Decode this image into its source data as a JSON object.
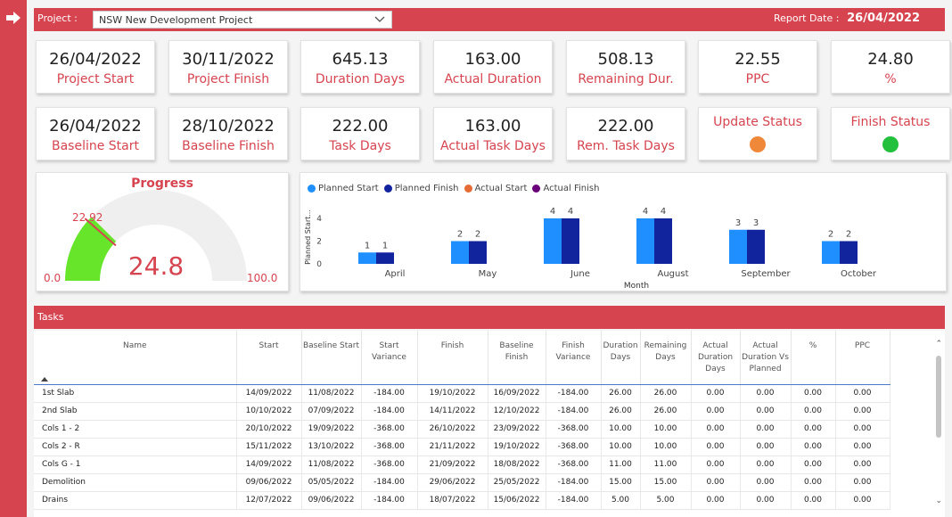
{
  "header": {
    "project_label": "Project :",
    "project_value": "NSW New Development Project",
    "report_date_label": "Report Date :",
    "report_date": "26/04/2022"
  },
  "kpis_row1": [
    {
      "value": "26/04/2022",
      "caption": "Project Start"
    },
    {
      "value": "30/11/2022",
      "caption": "Project Finish"
    },
    {
      "value": "645.13",
      "caption": "Duration Days"
    },
    {
      "value": "163.00",
      "caption": "Actual Duration"
    },
    {
      "value": "508.13",
      "caption": "Remaining Dur."
    },
    {
      "value": "22.55",
      "caption": "PPC"
    },
    {
      "value": "24.80",
      "caption": "%"
    }
  ],
  "kpis_row2": [
    {
      "value": "26/04/2022",
      "caption": "Baseline Start"
    },
    {
      "value": "28/10/2022",
      "caption": "Baseline Finish"
    },
    {
      "value": "222.00",
      "caption": "Task Days"
    },
    {
      "value": "163.00",
      "caption": "Actual Task Days"
    },
    {
      "value": "222.00",
      "caption": "Rem. Task Days"
    }
  ],
  "status": {
    "update_label": "Update Status",
    "update_color": "#f0883a",
    "finish_label": "Finish Status",
    "finish_color": "#22c03c"
  },
  "gauge": {
    "title": "Progress",
    "value": 24.8,
    "value_label": "24.8",
    "min_label": "0.0",
    "max_label": "100.0",
    "target": 22.92,
    "target_label": "22.92",
    "min": 0,
    "max": 100,
    "fill_color": "#66e52b",
    "track_color": "#efefef"
  },
  "chart_data": {
    "type": "bar",
    "categories": [
      "April",
      "May",
      "June",
      "August",
      "September",
      "October"
    ],
    "series": [
      {
        "name": "Planned Start",
        "color": "#1f8fff",
        "values": [
          1,
          2,
          4,
          4,
          3,
          2
        ]
      },
      {
        "name": "Planned Finish",
        "color": "#12239e",
        "values": [
          1,
          2,
          4,
          4,
          3,
          2
        ]
      },
      {
        "name": "Actual Start",
        "color": "#e66c37",
        "values": [
          0,
          0,
          0,
          0,
          0,
          0
        ]
      },
      {
        "name": "Actual Finish",
        "color": "#6b007b",
        "values": [
          0,
          0,
          0,
          0,
          0,
          0
        ]
      }
    ],
    "xlabel": "Month",
    "ylabel": "Planned Start...",
    "yticks": [
      0,
      2,
      4
    ],
    "ylim": [
      0,
      4
    ],
    "legend": "top-left",
    "grid": false
  },
  "tasks": {
    "title": "Tasks",
    "columns": [
      "Name",
      "Start",
      "Baseline Start",
      "Start Variance",
      "Finish",
      "Baseline Finish",
      "Finish Variance",
      "Duration Days",
      "Remaining Days",
      "Actual Duration Days",
      "Actual Duration Vs Planned",
      "%",
      "PPC"
    ],
    "rows": [
      [
        "1st Slab",
        "14/09/2022",
        "11/08/2022",
        "-184.00",
        "19/10/2022",
        "16/09/2022",
        "-184.00",
        "26.00",
        "26.00",
        "0.00",
        "0.00",
        "0.00",
        "0.00"
      ],
      [
        "2nd Slab",
        "10/10/2022",
        "07/09/2022",
        "-184.00",
        "14/11/2022",
        "12/10/2022",
        "-184.00",
        "26.00",
        "26.00",
        "0.00",
        "0.00",
        "0.00",
        "0.00"
      ],
      [
        "Cols 1 - 2",
        "20/10/2022",
        "19/09/2022",
        "-368.00",
        "26/10/2022",
        "23/09/2022",
        "-368.00",
        "10.00",
        "10.00",
        "0.00",
        "0.00",
        "0.00",
        "0.00"
      ],
      [
        "Cols 2 - R",
        "15/11/2022",
        "13/10/2022",
        "-368.00",
        "21/11/2022",
        "19/10/2022",
        "-368.00",
        "10.00",
        "10.00",
        "0.00",
        "0.00",
        "0.00",
        "0.00"
      ],
      [
        "Cols G - 1",
        "14/09/2022",
        "11/08/2022",
        "-368.00",
        "21/09/2022",
        "18/08/2022",
        "-368.00",
        "11.00",
        "11.00",
        "0.00",
        "0.00",
        "0.00",
        "0.00"
      ],
      [
        "Demolition",
        "09/06/2022",
        "05/05/2022",
        "-184.00",
        "29/06/2022",
        "25/05/2022",
        "-184.00",
        "15.00",
        "15.00",
        "0.00",
        "0.00",
        "0.00",
        "0.00"
      ],
      [
        "Drains",
        "12/07/2022",
        "09/06/2022",
        "-184.00",
        "18/07/2022",
        "15/06/2022",
        "-184.00",
        "5.00",
        "5.00",
        "0.00",
        "0.00",
        "0.00",
        "0.00"
      ]
    ]
  }
}
